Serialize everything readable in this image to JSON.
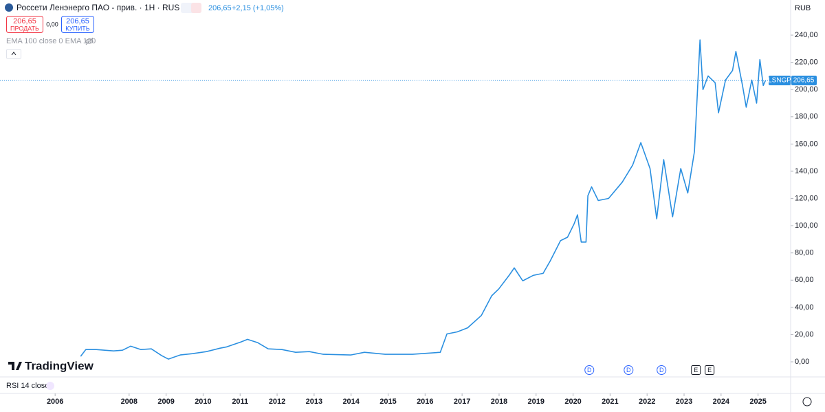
{
  "header": {
    "title": "Россети Ленэнерго ПАО - прив. · 1H · RUS",
    "price": "206,65",
    "change": "+2,15 (+1,05%)",
    "sell_price": "206,65",
    "sell_label": "ПРОДАТЬ",
    "spread": "0,00",
    "buy_price": "206,65",
    "buy_label": "КУПИТЬ",
    "indicator": "EMA 100 close 0 EMA 100",
    "currency": "RUB"
  },
  "logo": "TradingView",
  "rsi_pane": "RSI 14 close",
  "chart_data": {
    "type": "line",
    "series": [
      {
        "name": "LSNGP",
        "color": "#2a8fe0",
        "x": [
          2006.69,
          2006.83,
          2007.11,
          2007.58,
          2007.82,
          2008.04,
          2008.32,
          2008.6,
          2008.88,
          2009.06,
          2009.38,
          2009.71,
          2010.09,
          2010.46,
          2010.64,
          2011.02,
          2011.2,
          2011.48,
          2011.76,
          2012.13,
          2012.5,
          2012.87,
          2013.25,
          2013.99,
          2014.36,
          2014.92,
          2015.66,
          2016.41,
          2016.59,
          2016.87,
          2017.15,
          2017.52,
          2017.8,
          2017.99,
          2018.27,
          2018.41,
          2018.64,
          2018.92,
          2019.19,
          2019.38,
          2019.66,
          2019.85,
          2020.03,
          2020.12,
          2020.22,
          2020.35,
          2020.4,
          2020.5,
          2020.68,
          2020.96,
          2021.33,
          2021.61,
          2021.83,
          2022.08,
          2022.26,
          2022.45,
          2022.69,
          2022.91,
          2023.1,
          2023.28,
          2023.43,
          2023.51,
          2023.65,
          2023.84,
          2023.93,
          2024.12,
          2024.31,
          2024.4,
          2024.58,
          2024.68,
          2024.83,
          2024.96,
          2025.05,
          2025.14,
          2025.2
        ],
        "values": [
          4,
          9,
          9,
          8,
          8.5,
          11.5,
          9,
          9.5,
          4.5,
          2,
          5,
          6,
          7.5,
          10,
          11,
          14.5,
          16.5,
          14,
          9.5,
          9,
          7,
          7.5,
          5.5,
          5,
          7,
          5.5,
          5.5,
          7,
          20.5,
          22,
          25,
          34,
          48.5,
          53.5,
          63.5,
          69,
          59.5,
          63.5,
          65,
          74,
          89,
          91.5,
          101.5,
          108,
          88,
          88,
          122,
          128.5,
          118.5,
          120,
          132,
          144.5,
          161,
          142,
          105,
          148.5,
          106.5,
          142,
          124,
          154.5,
          236.5,
          200,
          210,
          205,
          183,
          207,
          214,
          228,
          203,
          187,
          207,
          190,
          222,
          203,
          206.65
        ]
      }
    ],
    "price_line": {
      "value": 206.65,
      "label": "206,65"
    },
    "xlim": [
      2004.51,
      2025.88
    ],
    "xticks": [
      2006,
      2008,
      2009,
      2010,
      2011,
      2012,
      2013,
      2014,
      2015,
      2016,
      2017,
      2018,
      2019,
      2020,
      2021,
      2022,
      2023,
      2024,
      2025
    ],
    "ylim": [
      -11.1,
      265.8
    ],
    "yticks": [
      {
        "value": 0,
        "label": "0,00"
      },
      {
        "value": 20,
        "label": "20,00"
      },
      {
        "value": 40,
        "label": "40,00"
      },
      {
        "value": 60,
        "label": "60,00"
      },
      {
        "value": 80,
        "label": "80,00"
      },
      {
        "value": 100,
        "label": "100,00"
      },
      {
        "value": 120,
        "label": "120,00"
      },
      {
        "value": 140,
        "label": "140,00"
      },
      {
        "value": 160,
        "label": "160,00"
      },
      {
        "value": 180,
        "label": "180,00"
      },
      {
        "value": 200,
        "label": "200,00"
      },
      {
        "value": 220,
        "label": "220,00"
      },
      {
        "value": 240,
        "label": "240,00"
      }
    ],
    "events": [
      {
        "x": 2020.44,
        "label": "D"
      },
      {
        "x": 2021.5,
        "label": "D"
      },
      {
        "x": 2022.39,
        "label": "D"
      },
      {
        "x": 2023.32,
        "label": "E"
      },
      {
        "x": 2023.69,
        "label": "E"
      }
    ]
  }
}
